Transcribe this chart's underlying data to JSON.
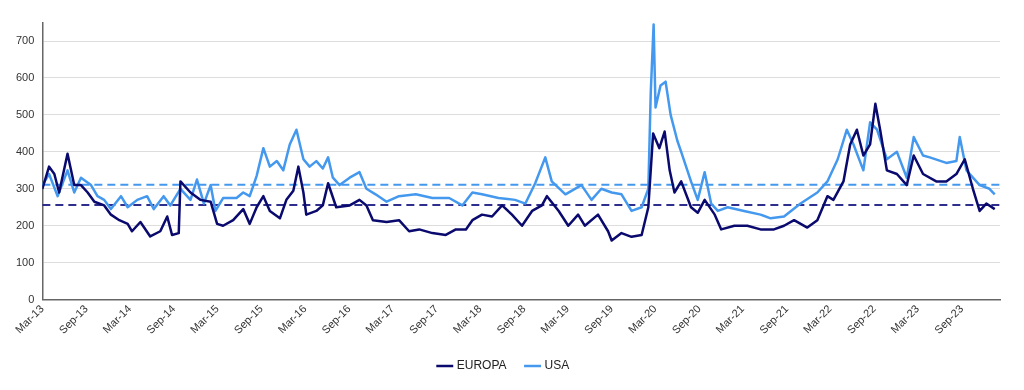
{
  "chart_data": {
    "type": "line",
    "xlim": [
      "2013-03-01",
      "2024-02-07"
    ],
    "xticks": [
      {
        "value": "2013-03-01",
        "label": "Mar-13"
      },
      {
        "value": "2013-09-01",
        "label": "Sep-13"
      },
      {
        "value": "2014-03-01",
        "label": "Mar-14"
      },
      {
        "value": "2014-09-01",
        "label": "Sep-14"
      },
      {
        "value": "2015-03-01",
        "label": "Mar-15"
      },
      {
        "value": "2015-09-01",
        "label": "Sep-15"
      },
      {
        "value": "2016-03-01",
        "label": "Mar-16"
      },
      {
        "value": "2016-09-01",
        "label": "Sep-16"
      },
      {
        "value": "2017-03-01",
        "label": "Mar-17"
      },
      {
        "value": "2017-09-01",
        "label": "Sep-17"
      },
      {
        "value": "2018-03-01",
        "label": "Mar-18"
      },
      {
        "value": "2018-09-01",
        "label": "Sep-18"
      },
      {
        "value": "2019-03-01",
        "label": "Mar-19"
      },
      {
        "value": "2019-09-01",
        "label": "Sep-19"
      },
      {
        "value": "2020-03-01",
        "label": "Mar-20"
      },
      {
        "value": "2020-09-01",
        "label": "Sep-20"
      },
      {
        "value": "2021-03-01",
        "label": "Mar-21"
      },
      {
        "value": "2021-09-01",
        "label": "Sep-21"
      },
      {
        "value": "2022-03-01",
        "label": "Mar-22"
      },
      {
        "value": "2022-09-01",
        "label": "Sep-22"
      },
      {
        "value": "2023-03-01",
        "label": "Mar-23"
      },
      {
        "value": "2023-09-01",
        "label": "Sep-23"
      }
    ],
    "ylim": [
      0,
      750
    ],
    "yticks": [
      0,
      100,
      200,
      300,
      400,
      500,
      600,
      700
    ],
    "grid": "y",
    "legend": "bottom",
    "marker": "none",
    "line_style": "solid",
    "ref_lines": [
      {
        "axis": "y",
        "value": 256,
        "color": "#2e2e8c",
        "line_style": "dashed"
      },
      {
        "axis": "y",
        "value": 311,
        "color": "#4499ee",
        "line_style": "dashed"
      }
    ],
    "series": [
      {
        "name": "EUROPA",
        "color": "#0a0a6e",
        "x": [
          "2013-03-01",
          "2013-03-29",
          "2013-04-20",
          "2013-05-10",
          "2013-06-14",
          "2013-07-12",
          "2013-08-09",
          "2013-09-06",
          "2013-10-04",
          "2013-11-14",
          "2013-12-12",
          "2014-01-16",
          "2014-02-20",
          "2014-03-10",
          "2014-04-14",
          "2014-05-25",
          "2014-07-06",
          "2014-08-04",
          "2014-08-24",
          "2014-09-21",
          "2014-09-28",
          "2014-11-09",
          "2014-12-20",
          "2015-02-01",
          "2015-02-28",
          "2015-03-25",
          "2015-05-06",
          "2015-06-17",
          "2015-07-14",
          "2015-08-12",
          "2015-09-09",
          "2015-10-06",
          "2015-11-17",
          "2015-12-14",
          "2016-01-12",
          "2016-02-02",
          "2016-02-23",
          "2016-03-06",
          "2016-04-17",
          "2016-05-14",
          "2016-06-05",
          "2016-07-09",
          "2016-09-03",
          "2016-10-14",
          "2016-11-12",
          "2016-12-09",
          "2017-02-04",
          "2017-03-28",
          "2017-05-09",
          "2017-06-20",
          "2017-08-14",
          "2017-10-09",
          "2017-11-20",
          "2018-01-01",
          "2018-01-28",
          "2018-03-09",
          "2018-04-20",
          "2018-06-01",
          "2018-07-12",
          "2018-08-23",
          "2018-10-04",
          "2018-11-14",
          "2018-12-05",
          "2019-01-23",
          "2019-03-04",
          "2019-04-14",
          "2019-05-12",
          "2019-07-06",
          "2019-08-17",
          "2019-09-01",
          "2019-10-12",
          "2019-11-23",
          "2020-01-04",
          "2020-02-01",
          "2020-02-21",
          "2020-03-18",
          "2020-04-09",
          "2020-04-30",
          "2020-05-20",
          "2020-06-17",
          "2020-07-28",
          "2020-08-25",
          "2020-09-23",
          "2020-11-04",
          "2020-12-01",
          "2021-01-25",
          "2021-03-20",
          "2021-05-14",
          "2021-07-09",
          "2021-08-20",
          "2021-10-01",
          "2021-11-25",
          "2022-01-06",
          "2022-02-17",
          "2022-03-14",
          "2022-04-25",
          "2022-05-23",
          "2022-06-20",
          "2022-07-17",
          "2022-08-14",
          "2022-09-05",
          "2022-09-25",
          "2022-10-23",
          "2022-12-04",
          "2023-01-14",
          "2023-02-12",
          "2023-03-23",
          "2023-05-17",
          "2023-06-28",
          "2023-08-09",
          "2023-09-13",
          "2023-10-17",
          "2023-11-14",
          "2023-12-12",
          "2024-01-16"
        ],
        "values": [
          300,
          360,
          340,
          290,
          395,
          310,
          310,
          290,
          265,
          255,
          230,
          215,
          205,
          185,
          210,
          171,
          185,
          225,
          175,
          180,
          320,
          290,
          270,
          265,
          205,
          200,
          215,
          245,
          205,
          250,
          280,
          240,
          220,
          270,
          295,
          360,
          290,
          230,
          240,
          255,
          315,
          250,
          255,
          270,
          255,
          215,
          210,
          215,
          185,
          190,
          180,
          175,
          190,
          190,
          215,
          230,
          225,
          255,
          230,
          200,
          240,
          255,
          280,
          240,
          200,
          230,
          200,
          230,
          185,
          160,
          180,
          170,
          175,
          250,
          450,
          410,
          455,
          350,
          290,
          320,
          250,
          235,
          270,
          230,
          190,
          200,
          200,
          190,
          190,
          200,
          215,
          195,
          215,
          280,
          270,
          320,
          420,
          460,
          390,
          420,
          530,
          460,
          350,
          340,
          310,
          390,
          340,
          320,
          320,
          340,
          380,
          300,
          240,
          260,
          245
        ]
      },
      {
        "name": "USA",
        "color": "#4499ee",
        "x": [
          "2013-03-01",
          "2013-03-29",
          "2013-05-04",
          "2013-06-14",
          "2013-07-12",
          "2013-08-09",
          "2013-09-20",
          "2013-10-17",
          "2013-11-14",
          "2013-12-12",
          "2014-01-23",
          "2014-02-20",
          "2014-04-01",
          "2014-05-12",
          "2014-06-09",
          "2014-07-20",
          "2014-08-17",
          "2014-09-28",
          "2014-11-09",
          "2014-12-06",
          "2015-01-04",
          "2015-02-01",
          "2015-02-21",
          "2015-03-25",
          "2015-05-20",
          "2015-06-17",
          "2015-07-14",
          "2015-08-12",
          "2015-09-09",
          "2015-10-06",
          "2015-11-04",
          "2015-12-01",
          "2015-12-28",
          "2016-01-25",
          "2016-02-23",
          "2016-03-20",
          "2016-04-17",
          "2016-05-14",
          "2016-06-05",
          "2016-06-25",
          "2016-07-23",
          "2016-09-03",
          "2016-10-14",
          "2016-11-12",
          "2016-12-20",
          "2017-02-04",
          "2017-03-28",
          "2017-06-06",
          "2017-08-14",
          "2017-10-23",
          "2017-12-17",
          "2018-01-28",
          "2018-03-09",
          "2018-05-17",
          "2018-07-25",
          "2018-09-06",
          "2018-10-17",
          "2018-11-28",
          "2018-12-25",
          "2019-02-20",
          "2019-04-28",
          "2019-06-09",
          "2019-07-20",
          "2019-09-01",
          "2019-10-12",
          "2019-11-23",
          "2020-01-04",
          "2020-02-01",
          "2020-02-11",
          "2020-02-23",
          "2020-03-02",
          "2020-03-23",
          "2020-04-13",
          "2020-05-04",
          "2020-06-01",
          "2020-06-17",
          "2020-07-28",
          "2020-08-25",
          "2020-09-23",
          "2020-10-20",
          "2020-11-17",
          "2020-12-28",
          "2021-03-06",
          "2021-05-14",
          "2021-06-25",
          "2021-08-20",
          "2021-10-28",
          "2022-01-06",
          "2022-02-17",
          "2022-04-01",
          "2022-05-09",
          "2022-06-06",
          "2022-07-17",
          "2022-08-14",
          "2022-09-12",
          "2022-10-23",
          "2022-12-04",
          "2023-01-14",
          "2023-02-12",
          "2023-03-23",
          "2023-04-20",
          "2023-06-28",
          "2023-08-09",
          "2023-08-23",
          "2023-09-20",
          "2023-11-14",
          "2023-12-25",
          "2024-01-16"
        ],
        "values": [
          310,
          340,
          280,
          350,
          290,
          330,
          310,
          280,
          270,
          245,
          280,
          250,
          270,
          280,
          245,
          280,
          255,
          300,
          270,
          325,
          260,
          310,
          240,
          275,
          275,
          290,
          280,
          335,
          410,
          360,
          375,
          350,
          420,
          460,
          380,
          360,
          375,
          355,
          385,
          330,
          310,
          330,
          345,
          300,
          285,
          265,
          280,
          285,
          275,
          275,
          255,
          290,
          285,
          275,
          270,
          260,
          315,
          385,
          320,
          285,
          310,
          270,
          300,
          290,
          285,
          240,
          250,
          300,
          560,
          745,
          520,
          580,
          590,
          500,
          430,
          400,
          320,
          270,
          345,
          260,
          240,
          250,
          240,
          230,
          220,
          225,
          260,
          290,
          320,
          380,
          460,
          420,
          350,
          480,
          460,
          380,
          400,
          330,
          440,
          390,
          385,
          370,
          375,
          440,
          350,
          310,
          300,
          285
        ]
      }
    ]
  }
}
